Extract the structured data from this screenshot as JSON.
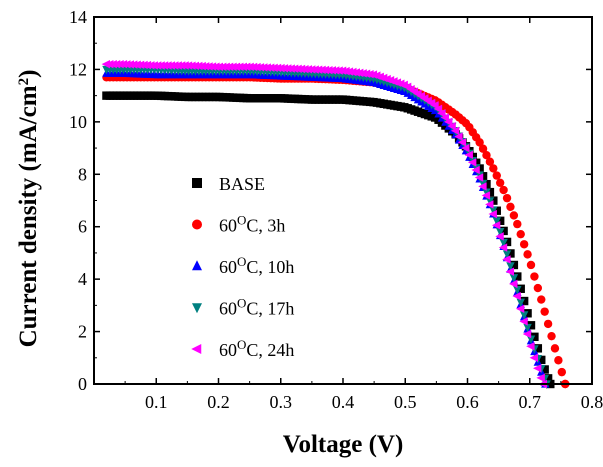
{
  "chart_data": {
    "type": "scatter",
    "xlabel": "Voltage (V)",
    "ylabel": {
      "main": "Current density (mA/cm",
      "sup": "2",
      "close": ")"
    },
    "xlim": [
      0.0,
      0.8
    ],
    "ylim": [
      0,
      14
    ],
    "x_ticks": [
      "0.1",
      "0.2",
      "0.3",
      "0.4",
      "0.5",
      "0.6",
      "0.7",
      "0.8"
    ],
    "y_ticks": [
      "0",
      "2",
      "4",
      "6",
      "8",
      "10",
      "12",
      "14"
    ],
    "grid": false,
    "legend_position": "center-left",
    "series": [
      {
        "name": "BASE",
        "name_parts": {
          "pre": "BASE",
          "sup": "",
          "post": ""
        },
        "marker": "square",
        "color": "#000000",
        "jsc": 11.0,
        "voc": 0.733,
        "x": [
          0.02,
          0.05,
          0.1,
          0.15,
          0.2,
          0.25,
          0.3,
          0.35,
          0.4,
          0.45,
          0.5,
          0.55,
          0.58,
          0.6,
          0.62,
          0.64,
          0.66,
          0.68,
          0.7,
          0.72,
          0.733
        ],
        "y": [
          11.0,
          11.0,
          11.0,
          10.95,
          10.95,
          10.9,
          10.9,
          10.85,
          10.85,
          10.75,
          10.55,
          10.15,
          9.55,
          9.0,
          8.2,
          7.1,
          5.7,
          4.1,
          2.4,
          0.8,
          0.0
        ]
      },
      {
        "name": "60°C, 3h",
        "name_parts": {
          "pre": "60",
          "sup": "O",
          "post": "C, 3h"
        },
        "marker": "circle",
        "color": "#ff0000",
        "jsc": 11.7,
        "voc": 0.757,
        "x": [
          0.02,
          0.05,
          0.1,
          0.15,
          0.2,
          0.25,
          0.3,
          0.35,
          0.4,
          0.45,
          0.5,
          0.55,
          0.58,
          0.6,
          0.62,
          0.64,
          0.66,
          0.68,
          0.7,
          0.72,
          0.74,
          0.757
        ],
        "y": [
          11.7,
          11.7,
          11.7,
          11.7,
          11.7,
          11.7,
          11.65,
          11.65,
          11.6,
          11.5,
          11.3,
          10.8,
          10.3,
          9.9,
          9.2,
          8.3,
          7.3,
          6.1,
          4.7,
          3.1,
          1.4,
          0.0
        ]
      },
      {
        "name": "60°C, 10h",
        "name_parts": {
          "pre": "60",
          "sup": "O",
          "post": "C, 10h"
        },
        "marker": "triangle-up",
        "color": "#0000ff",
        "jsc": 11.85,
        "voc": 0.725,
        "x": [
          0.02,
          0.05,
          0.1,
          0.15,
          0.2,
          0.25,
          0.3,
          0.35,
          0.4,
          0.45,
          0.5,
          0.55,
          0.58,
          0.6,
          0.62,
          0.64,
          0.66,
          0.68,
          0.7,
          0.712,
          0.725
        ],
        "y": [
          11.85,
          11.85,
          11.8,
          11.8,
          11.8,
          11.8,
          11.75,
          11.7,
          11.65,
          11.5,
          11.15,
          10.4,
          9.55,
          8.8,
          7.8,
          6.6,
          5.1,
          3.5,
          1.8,
          0.9,
          0.0
        ]
      },
      {
        "name": "60°C, 17h",
        "name_parts": {
          "pre": "60",
          "sup": "O",
          "post": "C, 17h"
        },
        "marker": "triangle-down",
        "color": "#008080",
        "jsc": 12.0,
        "voc": 0.727,
        "x": [
          0.02,
          0.05,
          0.1,
          0.15,
          0.2,
          0.25,
          0.3,
          0.35,
          0.4,
          0.45,
          0.5,
          0.55,
          0.58,
          0.6,
          0.62,
          0.64,
          0.66,
          0.68,
          0.7,
          0.714,
          0.727
        ],
        "y": [
          12.0,
          12.0,
          12.0,
          11.95,
          11.95,
          11.95,
          11.9,
          11.85,
          11.8,
          11.65,
          11.3,
          10.55,
          9.7,
          8.95,
          7.95,
          6.75,
          5.25,
          3.6,
          1.85,
          0.9,
          0.0
        ]
      },
      {
        "name": "60°C, 24h",
        "name_parts": {
          "pre": "60",
          "sup": "O",
          "post": "C, 24h"
        },
        "marker": "triangle-left",
        "color": "#ff00ff",
        "jsc": 12.2,
        "voc": 0.722,
        "x": [
          0.02,
          0.05,
          0.1,
          0.15,
          0.2,
          0.25,
          0.3,
          0.35,
          0.4,
          0.45,
          0.5,
          0.55,
          0.58,
          0.6,
          0.62,
          0.64,
          0.66,
          0.68,
          0.7,
          0.71,
          0.722
        ],
        "y": [
          12.2,
          12.2,
          12.15,
          12.15,
          12.1,
          12.1,
          12.05,
          12.0,
          11.95,
          11.8,
          11.4,
          10.6,
          9.7,
          8.9,
          7.85,
          6.6,
          5.05,
          3.35,
          1.6,
          0.8,
          0.0
        ]
      }
    ]
  }
}
